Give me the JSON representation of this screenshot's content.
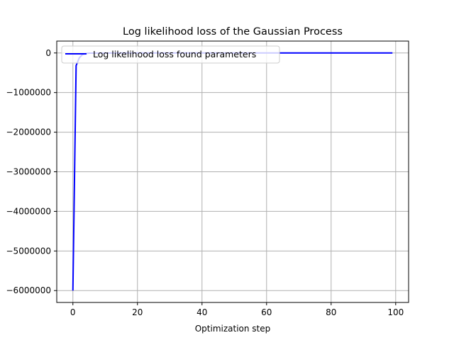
{
  "chart_data": {
    "type": "line",
    "title": "Log likelihood loss of the Gaussian Process",
    "xlabel": "Optimization step",
    "ylabel": "",
    "xlim": [
      -5,
      104
    ],
    "ylim": [
      -6300000,
      300000
    ],
    "xticks": [
      0,
      20,
      40,
      60,
      80,
      100
    ],
    "xtick_labels": [
      "0",
      "20",
      "40",
      "60",
      "80",
      "100"
    ],
    "yticks": [
      0,
      -1000000,
      -2000000,
      -3000000,
      -4000000,
      -5000000,
      -6000000
    ],
    "ytick_labels": [
      "0",
      "−1000000",
      "−2000000",
      "−3000000",
      "−4000000",
      "−5000000",
      "−6000000"
    ],
    "grid": true,
    "legend_position": "top-left",
    "series": [
      {
        "name": "Log likelihood loss found parameters",
        "color": "#0000ff",
        "x": [
          0,
          1,
          2,
          3,
          4,
          5,
          10,
          20,
          30,
          40,
          50,
          60,
          70,
          80,
          90,
          99
        ],
        "y": [
          -6000000,
          -320000,
          -120000,
          -40000,
          -15000,
          -5000,
          -1000,
          0,
          0,
          0,
          0,
          0,
          0,
          0,
          0,
          0
        ]
      }
    ]
  }
}
